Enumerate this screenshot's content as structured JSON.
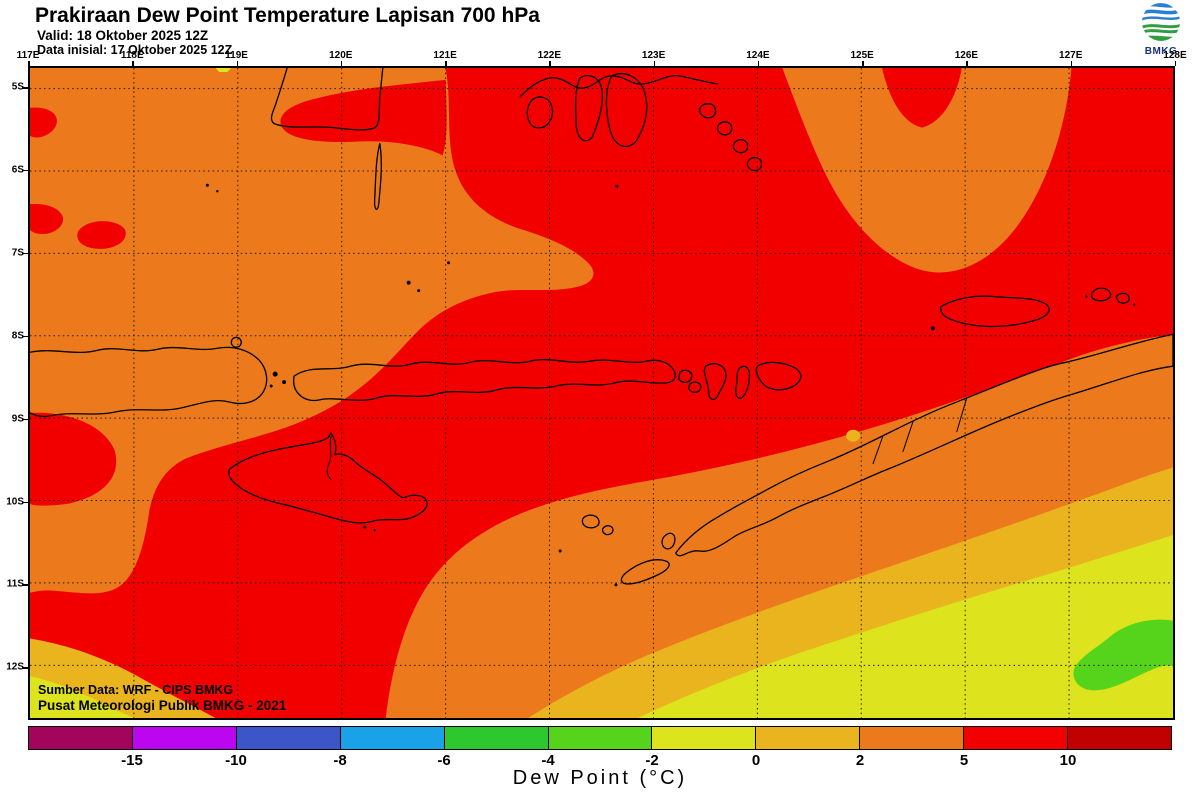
{
  "header": {
    "title": "Prakiraan Dew Point Temperature Lapisan 700 hPa",
    "valid_line": "Valid: 18 Oktober 2025 12Z",
    "init_line": "Data inisial: 17 Oktober 2025 12Z",
    "logo_label": "BMKG"
  },
  "map": {
    "lon_labels": [
      "117E",
      "118E",
      "119E",
      "120E",
      "121E",
      "122E",
      "123E",
      "124E",
      "125E",
      "126E",
      "127E",
      "128E"
    ],
    "lat_labels": [
      "5S",
      "6S",
      "7S",
      "8S",
      "9S",
      "10S",
      "11S",
      "12S"
    ],
    "source_line1": "Sumber Data: WRF - CIPS BMKG",
    "source_line2": "Pusat Meteorologi Publik BMKG - 2021",
    "fill_colors": {
      "red": "#f20000",
      "dark_red": "#c10000",
      "orange": "#ec7a1c",
      "amber": "#eab41e",
      "yellow": "#dde31c",
      "chartreuse": "#56d41c",
      "green": "#2dc82d",
      "light_blue": "#1aa2e8",
      "blue": "#3c55c8",
      "magenta": "#bc06f0",
      "maroon": "#a3045c"
    }
  },
  "colorbar": {
    "title": "Dew Point (°C)",
    "tick_labels": [
      "-15",
      "-10",
      "-8",
      "-6",
      "-4",
      "-2",
      "0",
      "2",
      "5",
      "10"
    ],
    "segment_colors": [
      "#a3045c",
      "#bc06f0",
      "#3c55c8",
      "#1aa2e8",
      "#2dc82d",
      "#56d41c",
      "#dde31c",
      "#eab41e",
      "#ec7a1c",
      "#f20000",
      "#c10000"
    ]
  }
}
